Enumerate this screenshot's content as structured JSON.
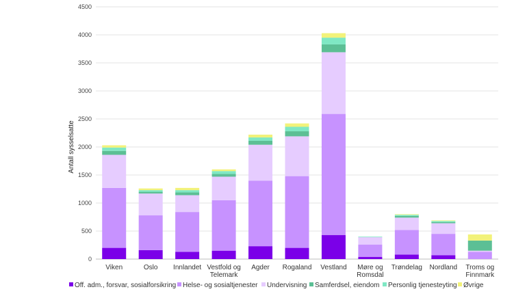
{
  "chart_data": {
    "type": "bar",
    "stacked": true,
    "ylabel": "Antall sysselsatte",
    "ylim": [
      0,
      4500
    ],
    "yticks": [
      0,
      500,
      1000,
      1500,
      2000,
      2500,
      3000,
      3500,
      4000,
      4500
    ],
    "grid": true,
    "legend_position": "bottom",
    "categories": [
      [
        "Viken"
      ],
      [
        "Oslo"
      ],
      [
        "Innlandet"
      ],
      [
        "Vestfold og",
        "Telemark"
      ],
      [
        "Agder"
      ],
      [
        "Rogaland"
      ],
      [
        "Vestland"
      ],
      [
        "Møre og",
        "Romsdal"
      ],
      [
        "Trøndelag"
      ],
      [
        "Nordland"
      ],
      [
        "Troms og",
        "Finnmark"
      ]
    ],
    "series": [
      {
        "name": "Off. adm., forsvar, sosialforsikring",
        "color": "#7b00e8",
        "values": [
          200,
          160,
          130,
          150,
          230,
          200,
          430,
          40,
          80,
          70,
          0
        ]
      },
      {
        "name": "Helse- og sosialtjenester",
        "color": "#c792ff",
        "values": [
          1070,
          620,
          710,
          900,
          1170,
          1280,
          2160,
          220,
          440,
          380,
          130
        ]
      },
      {
        "name": "Undervisning",
        "color": "#e6ccff",
        "values": [
          590,
          390,
          300,
          420,
          640,
          710,
          1100,
          130,
          220,
          190,
          20
        ]
      },
      {
        "name": "Samferdsel, eiendom",
        "color": "#5cbf95",
        "values": [
          70,
          30,
          50,
          50,
          70,
          90,
          140,
          0,
          30,
          20,
          180
        ]
      },
      {
        "name": "Personlig tjenesteyting",
        "color": "#7fe8c4",
        "values": [
          60,
          30,
          40,
          50,
          60,
          80,
          120,
          10,
          20,
          20,
          0
        ]
      },
      {
        "name": "Øvrige",
        "color": "#f2f27a",
        "values": [
          40,
          30,
          40,
          30,
          50,
          60,
          80,
          0,
          10,
          10,
          110
        ]
      }
    ]
  }
}
